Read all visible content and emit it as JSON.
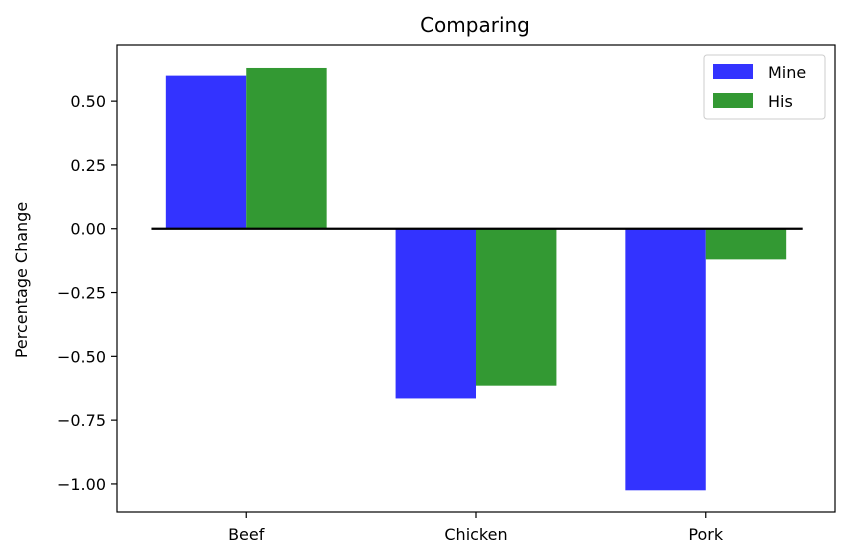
{
  "chart_data": {
    "type": "bar",
    "title": "Comparing",
    "xlabel": "",
    "ylabel": "Percentage Change",
    "categories": [
      "Beef",
      "Chicken",
      "Pork"
    ],
    "series": [
      {
        "name": "Mine",
        "values": [
          0.6,
          -0.665,
          -1.025
        ],
        "color": "#3333ff"
      },
      {
        "name": "His",
        "values": [
          0.63,
          -0.615,
          -0.12
        ],
        "color": "#339933"
      }
    ],
    "ylim": [
      -1.11,
      0.72
    ],
    "yticks": [
      0.5,
      0.25,
      0.0,
      -0.25,
      -0.5,
      -0.75,
      -1.0
    ],
    "ytick_labels": [
      "0.50",
      "0.25",
      "0.00",
      "−0.25",
      "−0.50",
      "−0.75",
      "−1.00"
    ],
    "zero_line": true,
    "grid": false,
    "legend_position": "top-right"
  }
}
